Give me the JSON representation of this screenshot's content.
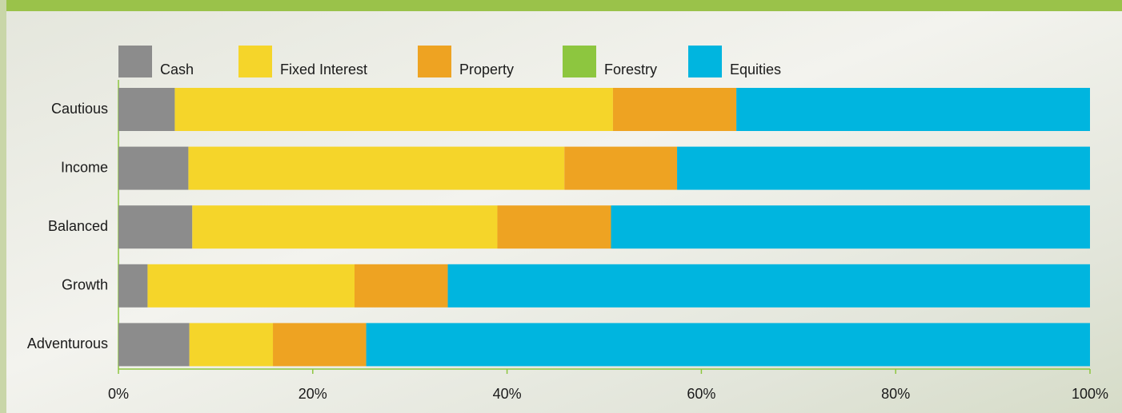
{
  "chart_data": {
    "type": "bar",
    "orientation": "horizontal",
    "stacked": true,
    "categories": [
      "Cautious",
      "Income",
      "Balanced",
      "Growth",
      "Adventurous"
    ],
    "series": [
      {
        "name": "Cash",
        "color": "#8c8c8c",
        "values": [
          5.8,
          7.2,
          7.6,
          3.0,
          7.3
        ]
      },
      {
        "name": "Fixed Interest",
        "color": "#f5d52a",
        "values": [
          45.1,
          38.7,
          31.4,
          21.3,
          8.6
        ]
      },
      {
        "name": "Property",
        "color": "#eea322",
        "values": [
          12.7,
          11.6,
          11.7,
          9.6,
          9.6
        ]
      },
      {
        "name": "Forestry",
        "color": "#8dc63f",
        "values": [
          0,
          0,
          0,
          0,
          0
        ]
      },
      {
        "name": "Equities",
        "color": "#00b5df",
        "values": [
          36.4,
          42.5,
          49.3,
          66.1,
          74.5
        ]
      }
    ],
    "xlim": [
      0,
      100
    ],
    "xticks": [
      {
        "value": 0,
        "label": "0%"
      },
      {
        "value": 20,
        "label": "20%"
      },
      {
        "value": 40,
        "label": "40%"
      },
      {
        "value": 60,
        "label": "60%"
      },
      {
        "value": 80,
        "label": "80%"
      },
      {
        "value": 100,
        "label": "100%"
      }
    ]
  }
}
